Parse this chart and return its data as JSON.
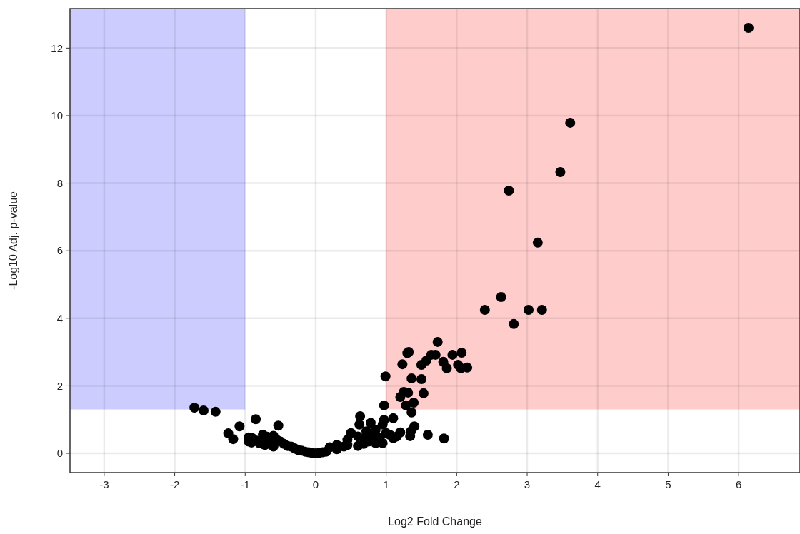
{
  "chart_data": {
    "type": "scatter",
    "xlabel": "Log2 Fold Change",
    "ylabel": "-Log10 Adj. p-value",
    "xlim": [
      -3.485,
      6.87
    ],
    "ylim": [
      -0.57,
      13.17
    ],
    "xticks": [
      -3,
      -2,
      -1,
      0,
      1,
      2,
      3,
      4,
      5,
      6
    ],
    "yticks": [
      0,
      2,
      4,
      6,
      8,
      10,
      12
    ],
    "grid": true,
    "marker": "circle",
    "bands": [
      {
        "axis": "x",
        "from": -3.485,
        "to": -1,
        "color": "#ccccff"
      },
      {
        "axis": "x",
        "from": 1,
        "to": 6.87,
        "color": "#ffcccc"
      },
      {
        "axis": "y",
        "from": -0.57,
        "to": 1.3,
        "color": "#ffffff"
      }
    ],
    "series": [
      {
        "color": "#000000",
        "x": [
          6.14,
          3.61,
          3.47,
          2.74,
          3.15,
          2.63,
          2.4,
          3.02,
          3.21,
          2.81,
          1.73,
          1.32,
          1.3,
          1.64,
          1.7,
          1.94,
          2.07,
          1.57,
          1.5,
          1.23,
          1.81,
          2.02,
          1.86,
          2.15,
          2.06,
          1.36,
          1.5,
          0.99,
          1.53,
          1.25,
          1.31,
          1.2,
          1.39,
          1.28,
          0.97,
          1.4,
          1.34,
          1.59,
          1.82,
          1.36,
          1.1,
          0.97,
          0.63,
          -1.72,
          -1.59,
          -1.42,
          -0.85,
          -0.53,
          -1.08,
          -1.24,
          -1.17,
          -0.95,
          -0.91,
          -0.75,
          -0.7,
          -0.65,
          -0.6,
          -0.55,
          -0.5,
          -0.72,
          -0.6,
          -0.45,
          -0.4,
          -0.35,
          -0.3,
          -0.25,
          -0.2,
          -0.15,
          -0.1,
          -0.05,
          0,
          -0.85,
          -0.8,
          -0.9,
          -0.95,
          0.05,
          0.1,
          0.15,
          0.3,
          0.4,
          0.45,
          0.5,
          0.6,
          0.62,
          0.7,
          0.72,
          0.78,
          0.8,
          0.85,
          0.9,
          0.95,
          0.85,
          0.75,
          1.0,
          1.05,
          1.1,
          1.15,
          1.2,
          0.95,
          0.68,
          0.6,
          0.45,
          0.3,
          0.2,
          1.35
        ],
        "values": [
          12.6,
          9.79,
          8.33,
          7.78,
          6.24,
          4.63,
          4.25,
          4.25,
          4.25,
          3.83,
          3.3,
          3.0,
          2.97,
          2.92,
          2.92,
          2.92,
          2.98,
          2.75,
          2.62,
          2.64,
          2.71,
          2.62,
          2.52,
          2.54,
          2.52,
          2.22,
          2.2,
          2.28,
          1.78,
          1.82,
          1.8,
          1.67,
          1.5,
          1.42,
          1.42,
          0.8,
          0.51,
          0.55,
          0.44,
          1.21,
          1.04,
          0.99,
          1.1,
          1.35,
          1.27,
          1.23,
          1.01,
          0.82,
          0.8,
          0.59,
          0.42,
          0.47,
          0.32,
          0.55,
          0.5,
          0.45,
          0.52,
          0.4,
          0.35,
          0.25,
          0.2,
          0.28,
          0.22,
          0.2,
          0.15,
          0.1,
          0.08,
          0.05,
          0.03,
          0.01,
          0,
          0.38,
          0.3,
          0.45,
          0.35,
          0.01,
          0.03,
          0.05,
          0.12,
          0.2,
          0.25,
          0.6,
          0.5,
          0.85,
          0.45,
          0.65,
          0.9,
          0.55,
          0.7,
          0.45,
          0.3,
          0.3,
          0.35,
          0.6,
          0.55,
          0.45,
          0.5,
          0.62,
          0.85,
          0.28,
          0.22,
          0.4,
          0.25,
          0.18,
          0.65
        ]
      }
    ]
  }
}
